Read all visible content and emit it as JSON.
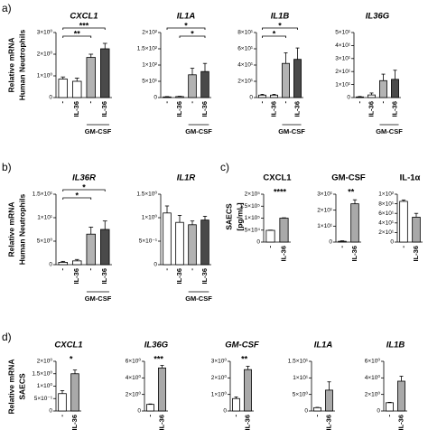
{
  "panels": [
    {
      "label": "a)",
      "ylabel": [
        "Relative mRNA",
        "Human Neutrophils"
      ],
      "italic": true
    },
    {
      "label": "b)",
      "ylabel": [
        "Relative mRNA",
        "Human Neutrophils"
      ],
      "italic": true
    },
    {
      "label": "c)",
      "ylabel": [
        "SAECS",
        "[pg/mL]"
      ],
      "italic": false
    },
    {
      "label": "d)",
      "ylabel": [
        "Relative mRNA",
        "SAECS"
      ],
      "italic": true
    }
  ],
  "chart_data": [
    {
      "type": "bar",
      "title": "CXCL1",
      "categories": [
        "-",
        "IL-36",
        "-",
        "IL-36"
      ],
      "values": [
        0.85,
        0.75,
        1.85,
        2.25
      ],
      "errors": [
        0.1,
        0.15,
        0.15,
        0.25
      ],
      "colors": [
        "#ffffff",
        "#ffffff",
        "#b3b3b3",
        "#4a4a4a"
      ],
      "ylim": [
        0,
        3
      ],
      "yticks": [
        0,
        {
          "value": 1,
          "label": "1×10⁰"
        },
        {
          "value": 2,
          "label": "2×10⁰"
        },
        {
          "value": 3,
          "label": "3×10⁰"
        }
      ],
      "annotations": [
        {
          "text": "**",
          "bars": [
            0,
            2
          ]
        },
        {
          "text": "***",
          "bars": [
            0,
            3
          ]
        }
      ],
      "group": {
        "label": "GM-CSF",
        "bars": [
          2,
          3
        ]
      }
    },
    {
      "type": "bar",
      "title": "IL1A",
      "categories": [
        "-",
        "IL-36",
        "-",
        "IL-36"
      ],
      "values": [
        2,
        3,
        70,
        80
      ],
      "errors": [
        1,
        1,
        20,
        25
      ],
      "colors": [
        "#ffffff",
        "#ffffff",
        "#b3b3b3",
        "#4a4a4a"
      ],
      "ylim": [
        0,
        200
      ],
      "yticks": [
        0,
        {
          "value": 50,
          "label": "5×10¹"
        },
        {
          "value": 100,
          "label": "1×10²"
        },
        {
          "value": 150,
          "label": "1.5×10²"
        },
        {
          "value": 200,
          "label": "2×10²"
        }
      ],
      "annotations": [
        {
          "text": "*",
          "bars": [
            1,
            3
          ]
        },
        {
          "text": "*",
          "bars": [
            0,
            3
          ]
        }
      ],
      "group": {
        "label": "GM-CSF",
        "bars": [
          2,
          3
        ]
      }
    },
    {
      "type": "bar",
      "title": "IL1B",
      "categories": [
        "-",
        "IL-36",
        "-",
        "IL-36"
      ],
      "values": [
        3,
        3,
        42,
        47
      ],
      "errors": [
        1,
        1,
        13,
        14
      ],
      "colors": [
        "#ffffff",
        "#ffffff",
        "#b3b3b3",
        "#4a4a4a"
      ],
      "ylim": [
        0,
        80
      ],
      "yticks": [
        0,
        {
          "value": 20,
          "label": "2×10¹"
        },
        {
          "value": 40,
          "label": "4×10¹"
        },
        {
          "value": 60,
          "label": "6×10¹"
        },
        {
          "value": 80,
          "label": "8×10¹"
        }
      ],
      "annotations": [
        {
          "text": "*",
          "bars": [
            0,
            2
          ]
        },
        {
          "text": "*",
          "bars": [
            0,
            3
          ]
        }
      ],
      "group": {
        "label": "GM-CSF",
        "bars": [
          2,
          3
        ]
      }
    },
    {
      "type": "bar",
      "title": "IL36G",
      "categories": [
        "-",
        "IL-36",
        "-",
        "IL-36"
      ],
      "values": [
        0.5,
        2,
        13,
        14
      ],
      "errors": [
        0.3,
        1.5,
        5,
        7
      ],
      "colors": [
        "#ffffff",
        "#ffffff",
        "#b3b3b3",
        "#4a4a4a"
      ],
      "ylim": [
        0,
        50
      ],
      "yticks": [
        0,
        {
          "value": 10,
          "label": "1×10¹"
        },
        {
          "value": 20,
          "label": "2×10¹"
        },
        {
          "value": 30,
          "label": "3×10¹"
        },
        {
          "value": 40,
          "label": "4×10¹"
        },
        {
          "value": 50,
          "label": "5×10¹"
        }
      ],
      "annotations": [],
      "group": {
        "label": "GM-CSF",
        "bars": [
          2,
          3
        ]
      }
    },
    {
      "type": "bar",
      "title": "IL36R",
      "categories": [
        "-",
        "IL-36",
        "-",
        "IL-36"
      ],
      "values": [
        0.5,
        0.8,
        6.5,
        7.5
      ],
      "errors": [
        0.2,
        0.3,
        1.5,
        1.8
      ],
      "colors": [
        "#ffffff",
        "#ffffff",
        "#b3b3b3",
        "#4a4a4a"
      ],
      "ylim": [
        0,
        15
      ],
      "yticks": [
        0,
        {
          "value": 5,
          "label": "5×10⁰"
        },
        {
          "value": 10,
          "label": "1×10¹"
        },
        {
          "value": 15,
          "label": "1.5×10¹"
        }
      ],
      "annotations": [
        {
          "text": "*",
          "bars": [
            0,
            2
          ]
        },
        {
          "text": "*",
          "bars": [
            0,
            3
          ]
        }
      ],
      "group": {
        "label": "GM-CSF",
        "bars": [
          2,
          3
        ]
      }
    },
    {
      "type": "bar",
      "title": "IL1R",
      "categories": [
        "-",
        "IL-36",
        "-",
        "IL-36"
      ],
      "values": [
        1.1,
        0.9,
        0.85,
        0.95
      ],
      "errors": [
        0.15,
        0.15,
        0.08,
        0.08
      ],
      "colors": [
        "#ffffff",
        "#ffffff",
        "#b3b3b3",
        "#4a4a4a"
      ],
      "ylim": [
        0,
        1.5
      ],
      "yticks": [
        0,
        {
          "value": 0.5,
          "label": "5×10⁻¹"
        },
        {
          "value": 1,
          "label": "1×10⁰"
        },
        {
          "value": 1.5,
          "label": "1.5×10⁰"
        }
      ],
      "annotations": [],
      "group": {
        "label": "GM-CSF",
        "bars": [
          2,
          3
        ]
      }
    },
    {
      "type": "bar",
      "title": "CXCL1",
      "categories": [
        "-",
        "IL-36"
      ],
      "values": [
        49000,
        100000
      ],
      "errors": [
        1000,
        1500
      ],
      "colors": [
        "#ffffff",
        "#a9a9a9"
      ],
      "ylim": [
        0,
        200000
      ],
      "yticks": [
        0,
        {
          "value": 50000,
          "label": "5×10⁴"
        },
        {
          "value": 100000,
          "label": "1×10⁵"
        },
        {
          "value": 150000,
          "label": "1.5×10⁵"
        },
        {
          "value": 200000,
          "label": "2×10⁵"
        }
      ],
      "annotations": [
        {
          "text": "****",
          "bars": [
            1
          ]
        }
      ]
    },
    {
      "type": "bar",
      "title": "GM-CSF",
      "categories": [
        "-",
        "IL-36"
      ],
      "values": [
        0.5,
        24
      ],
      "errors": [
        0.3,
        2.5
      ],
      "colors": [
        "#ffffff",
        "#a9a9a9"
      ],
      "ylim": [
        0,
        30
      ],
      "yticks": [
        0,
        {
          "value": 10,
          "label": "1×10¹"
        },
        {
          "value": 20,
          "label": "2×10¹"
        },
        {
          "value": 30,
          "label": "3×10¹"
        }
      ],
      "annotations": [
        {
          "text": "**",
          "bars": [
            1
          ]
        }
      ]
    },
    {
      "type": "bar",
      "title": "IL-1α",
      "categories": [
        "-",
        "IL-36"
      ],
      "values": [
        85,
        52
      ],
      "errors": [
        3,
        8
      ],
      "colors": [
        "#ffffff",
        "#a9a9a9"
      ],
      "ylim": [
        0,
        100
      ],
      "yticks": [
        0,
        {
          "value": 20,
          "label": "2×10¹"
        },
        {
          "value": 40,
          "label": "4×10¹"
        },
        {
          "value": 60,
          "label": "6×10¹"
        },
        {
          "value": 80,
          "label": "8×10¹"
        },
        {
          "value": 100,
          "label": "1×10²"
        }
      ],
      "annotations": []
    },
    {
      "type": "bar",
      "title": "CXCL1",
      "categories": [
        "-",
        "IL-36"
      ],
      "values": [
        0.7,
        1.5
      ],
      "errors": [
        0.12,
        0.15
      ],
      "colors": [
        "#ffffff",
        "#a9a9a9"
      ],
      "ylim": [
        0,
        2
      ],
      "yticks": [
        0,
        {
          "value": 0.5,
          "label": "5×10⁻¹"
        },
        {
          "value": 1,
          "label": "1×10⁰"
        },
        {
          "value": 1.5,
          "label": "1.5×10⁰"
        },
        {
          "value": 2,
          "label": "2×10⁰"
        }
      ],
      "annotations": [
        {
          "text": "*",
          "bars": [
            1
          ]
        }
      ]
    },
    {
      "type": "bar",
      "title": "IL36G",
      "categories": [
        "-",
        "IL-36"
      ],
      "values": [
        0.8,
        5.2
      ],
      "errors": [
        0.05,
        0.3
      ],
      "colors": [
        "#ffffff",
        "#a9a9a9"
      ],
      "ylim": [
        0,
        6
      ],
      "yticks": [
        0,
        {
          "value": 2,
          "label": "2×10⁰"
        },
        {
          "value": 4,
          "label": "4×10⁰"
        },
        {
          "value": 6,
          "label": "6×10⁰"
        }
      ],
      "annotations": [
        {
          "text": "***",
          "bars": [
            1
          ]
        }
      ]
    },
    {
      "type": "bar",
      "title": "GM-CSF",
      "categories": [
        "-",
        "IL-36"
      ],
      "values": [
        0.75,
        2.5
      ],
      "errors": [
        0.1,
        0.2
      ],
      "colors": [
        "#ffffff",
        "#a9a9a9"
      ],
      "ylim": [
        0,
        3
      ],
      "yticks": [
        0,
        {
          "value": 1,
          "label": "1×10⁰"
        },
        {
          "value": 2,
          "label": "2×10⁰"
        },
        {
          "value": 3,
          "label": "3×10⁰"
        }
      ],
      "annotations": [
        {
          "text": "**",
          "bars": [
            1
          ]
        }
      ]
    },
    {
      "type": "bar",
      "title": "IL1A",
      "categories": [
        "-",
        "IL-36"
      ],
      "values": [
        1,
        6.3
      ],
      "errors": [
        0.1,
        2.5
      ],
      "colors": [
        "#ffffff",
        "#a9a9a9"
      ],
      "ylim": [
        0,
        15
      ],
      "yticks": [
        0,
        {
          "value": 5,
          "label": "5×10⁰"
        },
        {
          "value": 10,
          "label": "1×10¹"
        },
        {
          "value": 15,
          "label": "1.5×10¹"
        }
      ],
      "annotations": []
    },
    {
      "type": "bar",
      "title": "IL1B",
      "categories": [
        "-",
        "IL-36"
      ],
      "values": [
        1,
        3.6
      ],
      "errors": [
        0.05,
        0.6
      ],
      "colors": [
        "#ffffff",
        "#a9a9a9"
      ],
      "ylim": [
        0,
        6
      ],
      "yticks": [
        0,
        {
          "value": 2,
          "label": "2×10⁰"
        },
        {
          "value": 4,
          "label": "4×10⁰"
        },
        {
          "value": 6,
          "label": "6×10⁰"
        }
      ],
      "annotations": []
    }
  ]
}
